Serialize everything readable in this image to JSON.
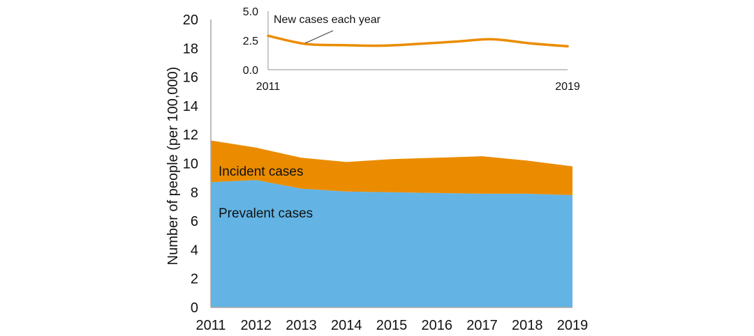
{
  "chart_data": [
    {
      "type": "area",
      "stacked": true,
      "title": "",
      "xlabel": "",
      "ylabel": "Number of people (per 100,000)",
      "categories": [
        "2011",
        "2012",
        "2013",
        "2014",
        "2015",
        "2016",
        "2017",
        "2018",
        "2019"
      ],
      "ylim": [
        0,
        20
      ],
      "yticks": [
        "0",
        "2",
        "4",
        "6",
        "8",
        "10",
        "12",
        "14",
        "16",
        "18",
        "20"
      ],
      "grid": false,
      "series": [
        {
          "name": "Prevalent cases",
          "color": "#63b4e4",
          "values": [
            8.7,
            8.85,
            8.25,
            8.05,
            8.0,
            7.95,
            7.9,
            7.9,
            7.8
          ]
        },
        {
          "name": "Incident cases",
          "color": "#eb8c00",
          "values": [
            2.9,
            2.25,
            2.15,
            2.05,
            2.3,
            2.45,
            2.6,
            2.3,
            2.0
          ]
        }
      ],
      "annotations": [
        "Incident cases",
        "Prevalent cases"
      ]
    },
    {
      "type": "line",
      "title": "",
      "annotation": "New cases each year",
      "categories": [
        "2011",
        "2012",
        "2013",
        "2014",
        "2015",
        "2016",
        "2017",
        "2018",
        "2019"
      ],
      "xticks": [
        "2011",
        "2019"
      ],
      "ylim": [
        0,
        5
      ],
      "yticks": [
        "0.0",
        "2.5",
        "5.0"
      ],
      "grid": false,
      "series": [
        {
          "name": "New cases each year",
          "color": "#eb8c00",
          "values": [
            2.9,
            2.2,
            2.1,
            2.05,
            2.2,
            2.4,
            2.6,
            2.25,
            2.0
          ]
        }
      ]
    }
  ]
}
